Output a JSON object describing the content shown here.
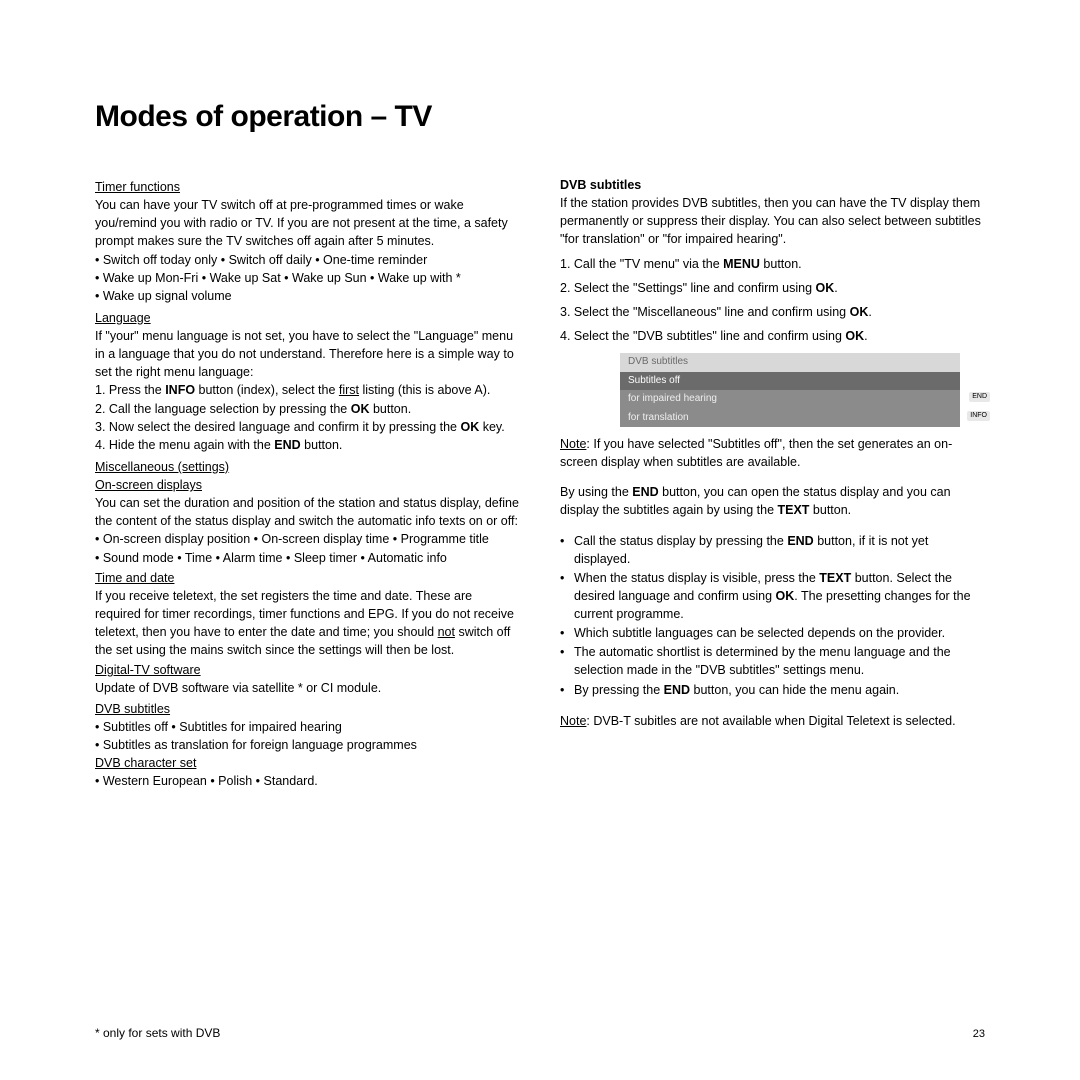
{
  "title": "Modes of operation – TV",
  "left": {
    "timer": {
      "head": "Timer functions",
      "p1": "You can have your TV switch off at pre-programmed times or wake you/remind you with radio or TV. If you are not present at the time, a safety prompt makes sure the TV switches off again after 5 minutes.",
      "b1": "• Switch off today only  • Switch off daily  • One-time reminder",
      "b2": "• Wake up Mon-Fri   • Wake up Sat   • Wake up Sun   • Wake up with *",
      "b3": "• Wake up signal volume"
    },
    "lang": {
      "head": "Language",
      "p1": "If \"your\" menu language is not set, you have to select the \"Language\" menu in a language that you do not understand. Therefore here is a simple way to set the right menu language:",
      "n1a": "1.  Press the ",
      "n1b": "INFO",
      "n1c": " button (index), select the ",
      "n1d": "first",
      "n1e": " listing (this is above A).",
      "n2a": "2.  Call the language selection by pressing the ",
      "n2b": "OK",
      "n2c": " button.",
      "n3a": "3.  Now select the desired language and confirm it by pressing the ",
      "n3b": "OK",
      "n3c": " key.",
      "n4a": "4.  Hide the menu again with the ",
      "n4b": "END",
      "n4c": " button."
    },
    "misc": {
      "head": "Miscellaneous (settings)",
      "osd_head": "On-screen displays",
      "osd_p": "You can set the duration and position of the station and status display, define the content of the status display and switch the automatic info texts on or off:",
      "osd_b1": "• On-screen display position   • On-screen display time   • Programme title",
      "osd_b2": "• Sound mode   • Time   • Alarm time   • Sleep timer   • Automatic info",
      "time_head": "Time and date",
      "time_p1": "If you receive teletext, the set registers the time and date. These are required for timer recordings, timer functions and EPG. If you do not receive teletext, then you have to enter the date and time; you should ",
      "time_not": "not",
      "time_p2": " switch off the set using the mains switch since the settings will then be lost.",
      "dtv_head": "Digital-TV software",
      "dtv_p": "Update of DVB software via satellite * or CI module.",
      "dvb_head": "DVB subtitles ",
      "dvb_b1": "• Subtitles off    • Subtitles for impaired hearing",
      "dvb_b2": "• Subtitles as translation for foreign language programmes",
      "char_head": "DVB character set",
      "char_b": "• Western European   • Polish   • Standard."
    }
  },
  "right": {
    "head": "DVB subtitles",
    "p1": "If the station provides DVB subtitles, then you can have the TV display them permanently or suppress their display. You can also select between subtitles \"for translation\" or \"for impaired hearing\".",
    "n1a": "1.  Call the \"TV menu\" via the ",
    "n1b": "MENU",
    "n1c": " button.",
    "n2a": "2.  Select the \"Settings\" line and confirm using ",
    "n2b": "OK",
    "n2c": ".",
    "n3a": "3.  Select the \"Miscellaneous\" line and confirm using ",
    "n3b": "OK",
    "n3c": ".",
    "n4a": "4.  Select the \"DVB subtitles\" line and confirm using ",
    "n4b": "OK",
    "n4c": ".",
    "screenshot": {
      "header": "DVB subtitles",
      "row1": "Subtitles off",
      "row2": "for impaired hearing",
      "row3": "for translation",
      "tag1": "END",
      "tag2": "INFO"
    },
    "note1a": "Note",
    "note1b": ": If you have selected \"Subtitles off\", then the set generates an on-screen display when subtitles are available.",
    "p2a": "By using the ",
    "p2b": "END",
    "p2c": " button, you can open the status display and you can display the subtitles again by using the ",
    "p2d": "TEXT",
    "p2e": " button.",
    "bl1a": "Call the status display by pressing the ",
    "bl1b": "END",
    "bl1c": " button, if it is not yet displayed.",
    "bl2a": "When the status display is visible, press the ",
    "bl2b": "TEXT",
    "bl2c": " button. Select the desired language and confirm using ",
    "bl2d": "OK",
    "bl2e": ". The presetting changes for the current programme.",
    "bl3": "Which subtitle languages can be selected depends on the provider.",
    "bl4": "The automatic shortlist is determined by the menu language and the selection made in the \"DVB subtitles\" settings menu.",
    "bl5a": "By pressing the ",
    "bl5b": "END",
    "bl5c": " button, you can hide the menu again.",
    "note2a": "Note",
    "note2b": ": DVB-T subitles are not available when Digital Teletext is selected."
  },
  "footnote": "* only for sets with DVB",
  "pagenum": "23"
}
